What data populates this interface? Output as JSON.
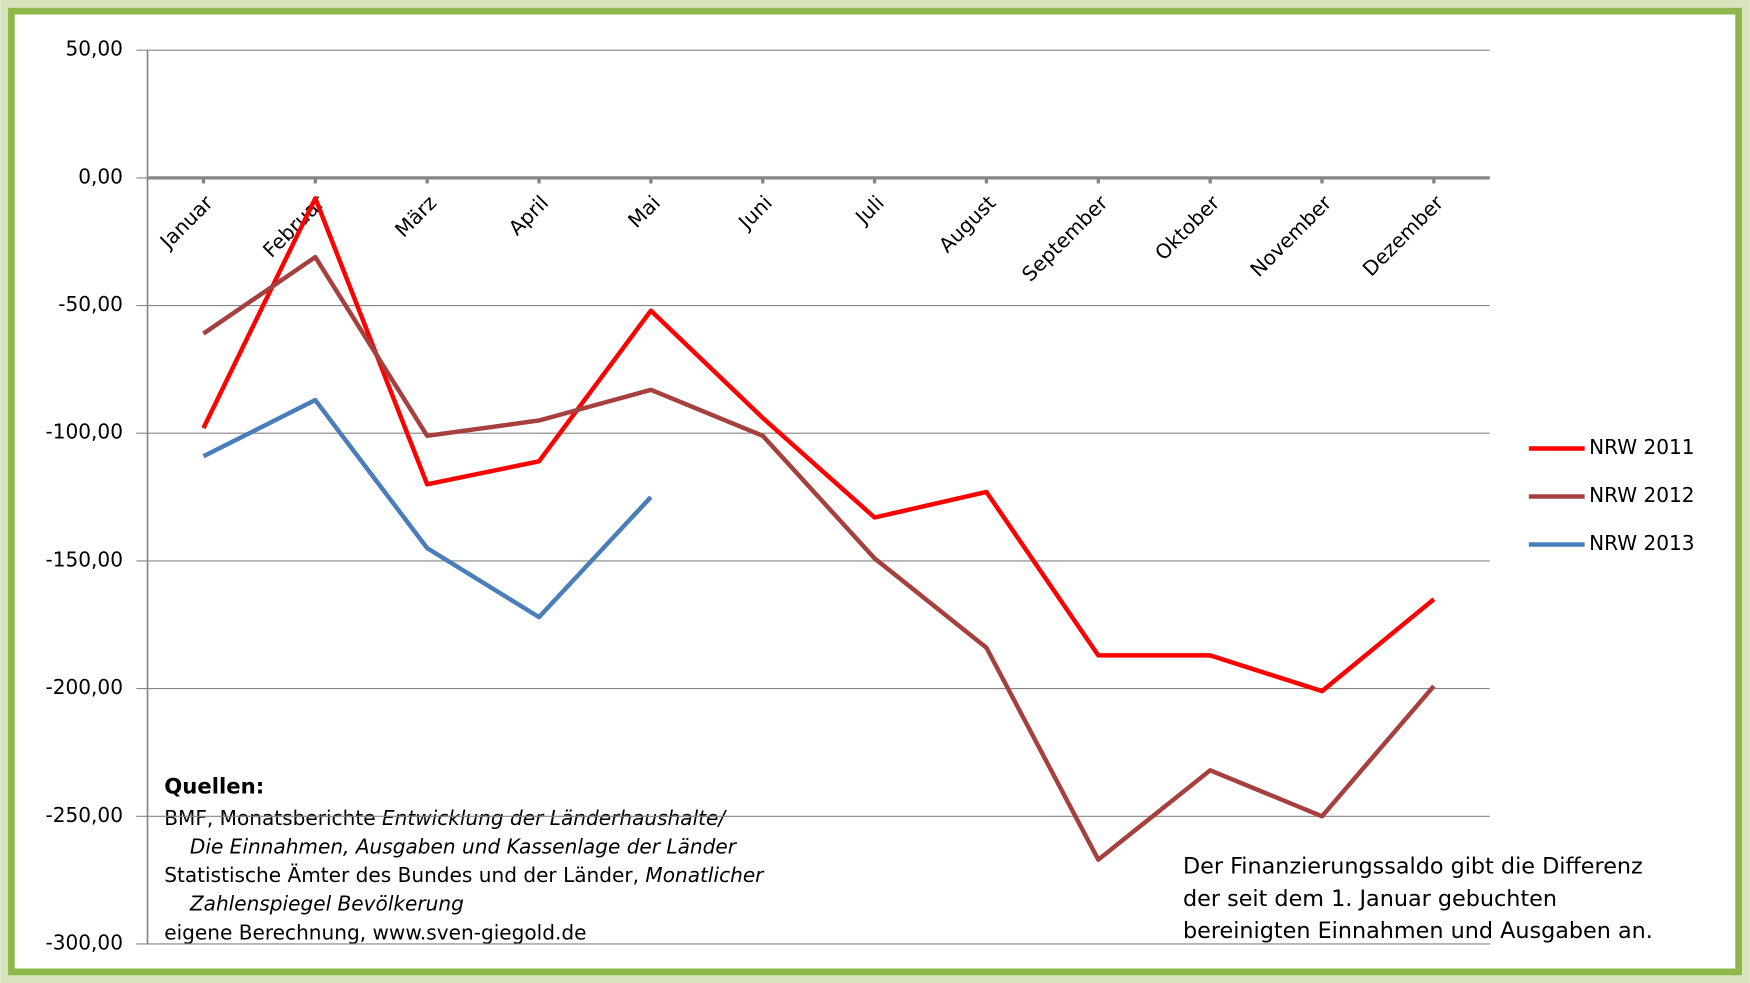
{
  "chart_data": {
    "type": "line",
    "categories": [
      "Januar",
      "Februar",
      "März",
      "April",
      "Mai",
      "Juni",
      "Juli",
      "August",
      "September",
      "Oktober",
      "November",
      "Dezember"
    ],
    "series": [
      {
        "name": "NRW 2011",
        "color": "#ff0000",
        "values": [
          -98,
          -8,
          -120,
          -111,
          -52,
          -94,
          -133,
          -123,
          -187,
          -187,
          -201,
          -165
        ]
      },
      {
        "name": "NRW 2012",
        "color": "#a5403e",
        "values": [
          -61,
          -31,
          -101,
          -95,
          -83,
          -101,
          -149,
          -184,
          -267,
          -232,
          -250,
          -199
        ]
      },
      {
        "name": "NRW 2013",
        "color": "#4a7ebb",
        "values": [
          -109,
          -87,
          -145,
          -172,
          -125,
          null,
          null,
          null,
          null,
          null,
          null,
          null
        ]
      }
    ],
    "ylim": [
      -300,
      50
    ],
    "yticks": [
      {
        "value": -300,
        "label": "-300,00"
      },
      {
        "value": -250,
        "label": "-250,00"
      },
      {
        "value": -200,
        "label": "-200,00"
      },
      {
        "value": -150,
        "label": "-150,00"
      },
      {
        "value": -100,
        "label": "-100,00"
      },
      {
        "value": -50,
        "label": "-50,00"
      },
      {
        "value": 0,
        "label": "0,00"
      },
      {
        "value": 50,
        "label": "50,00"
      }
    ],
    "grid": true,
    "legend": "right",
    "sources_title": "Quellen:",
    "sources": [
      "BMF,  Monatsberichte ",
      "Entwicklung der Länderhaushalte/",
      "Die Einnahmen, Ausgaben und Kassenlage der Länder",
      "Statistische Ämter des Bundes und der Länder, ",
      "Monatlicher",
      "Zahlenspiegel Bevölkerung",
      "eigene Berechnung, www.sven-giegold.de"
    ],
    "note": [
      "Der Finanzierungssaldo gibt die Differenz",
      "der seit dem 1. Januar gebuchten",
      "bereinigten Einnahmen und Ausgaben an."
    ]
  }
}
